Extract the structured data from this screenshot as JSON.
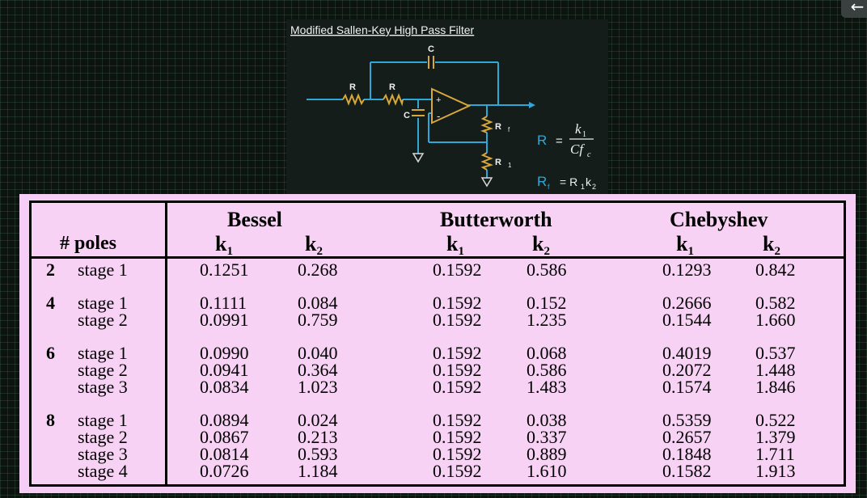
{
  "diagram": {
    "title": "Modified Sallen-Key High Pass Filter",
    "labels": {
      "c_top": "C",
      "r1": "R",
      "r2": "R",
      "c_left": "C",
      "plus": "+",
      "minus": "-",
      "rf": "R",
      "rf_sub": "f",
      "r_one": "R",
      "r_one_sub": "1"
    },
    "formula_r": {
      "lhs": "R",
      "eq": "=",
      "num": "k",
      "num_sub": "1",
      "den": "Cf",
      "den_sub": "c"
    },
    "formula_rf": {
      "lhs": "R",
      "lhs_sub": "f",
      "rhs": "= R",
      "rhs_sub1": "1",
      "k": "k",
      "rhs_sub2": "2"
    },
    "colors": {
      "wire": "#2fa8d8",
      "component": "#d9a83a",
      "ground": "#d9d9d9",
      "panel": "#151d1b"
    }
  },
  "table": {
    "poles_header": "# poles",
    "families": [
      "Bessel",
      "Butterworth",
      "Chebyshev"
    ],
    "k_symbol": "k",
    "k1_sub": "1",
    "k2_sub": "2",
    "groups": [
      {
        "poles": "2",
        "rows": [
          {
            "stage": "stage 1",
            "values": [
              "0.1251",
              "0.268",
              "0.1592",
              "0.586",
              "0.1293",
              "0.842"
            ]
          }
        ]
      },
      {
        "poles": "4",
        "rows": [
          {
            "stage": "stage 1",
            "values": [
              "0.1111",
              "0.084",
              "0.1592",
              "0.152",
              "0.2666",
              "0.582"
            ]
          },
          {
            "stage": "stage 2",
            "values": [
              "0.0991",
              "0.759",
              "0.1592",
              "1.235",
              "0.1544",
              "1.660"
            ]
          }
        ]
      },
      {
        "poles": "6",
        "rows": [
          {
            "stage": "stage 1",
            "values": [
              "0.0990",
              "0.040",
              "0.1592",
              "0.068",
              "0.4019",
              "0.537"
            ]
          },
          {
            "stage": "stage 2",
            "values": [
              "0.0941",
              "0.364",
              "0.1592",
              "0.586",
              "0.2072",
              "1.448"
            ]
          },
          {
            "stage": "stage 3",
            "values": [
              "0.0834",
              "1.023",
              "0.1592",
              "1.483",
              "0.1574",
              "1.846"
            ]
          }
        ]
      },
      {
        "poles": "8",
        "rows": [
          {
            "stage": "stage 1",
            "values": [
              "0.0894",
              "0.024",
              "0.1592",
              "0.038",
              "0.5359",
              "0.522"
            ]
          },
          {
            "stage": "stage 2",
            "values": [
              "0.0867",
              "0.213",
              "0.1592",
              "0.337",
              "0.2657",
              "1.379"
            ]
          },
          {
            "stage": "stage 3",
            "values": [
              "0.0814",
              "0.593",
              "0.1592",
              "0.889",
              "0.1848",
              "1.711"
            ]
          },
          {
            "stage": "stage 4",
            "values": [
              "0.0726",
              "1.184",
              "0.1592",
              "1.610",
              "0.1582",
              "1.913"
            ]
          }
        ]
      }
    ],
    "colors": {
      "background": "#f7d2f5",
      "border": "#000000"
    }
  },
  "ui": {
    "back_icon": "back-arrow-icon",
    "back_glyph": "←"
  }
}
